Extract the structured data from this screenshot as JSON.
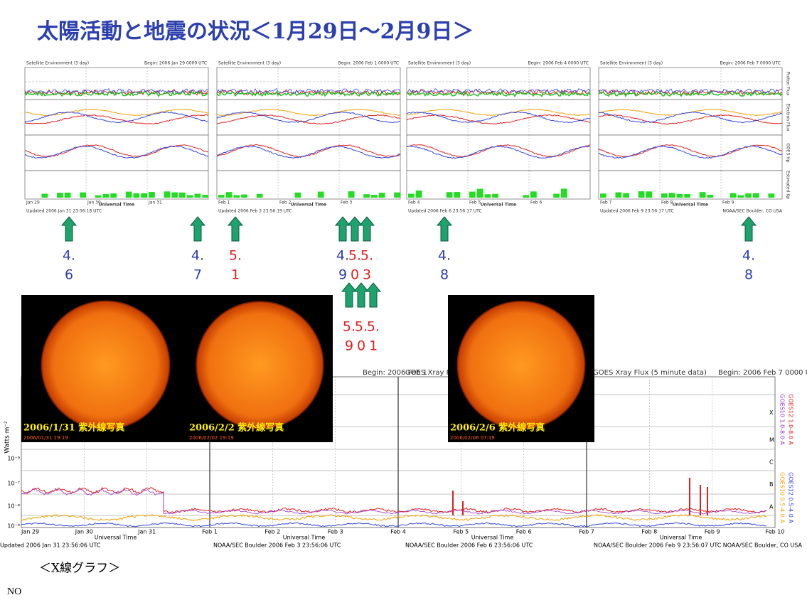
{
  "title": "太陽活動と地震の状況＜1月29日～2月9日＞",
  "satellite_panels": [
    {
      "heading": "Satellite Environment (3 day)",
      "begin": "Begin: 2006 Jan 29 0000 UTC",
      "dates": [
        "Jan 29",
        "Jan 30",
        "Jan 31"
      ],
      "footer": "Updated 2006 Jan 31 23:56:18 UTC",
      "credit": "NOAA/SEC Boulder, CO USA"
    },
    {
      "heading": "Satellite Environment (3 day)",
      "begin": "Begin: 2006 Feb 1 0000 UTC",
      "dates": [
        "Feb 1",
        "Feb 2",
        "Feb 3"
      ],
      "footer": "Updated 2006 Feb 3 23:56:19 UTC",
      "credit": "NOAA/SEC Boulder, CO USA"
    },
    {
      "heading": "Satellite Environment (3 day)",
      "begin": "Begin: 2006 Feb 4 0000 UTC",
      "dates": [
        "Feb 4",
        "Feb 5",
        "Feb 6"
      ],
      "footer": "Updated 2006 Feb 6 23:56:17 UTC",
      "credit": "NOAA/SEC Boulder, CO USA"
    },
    {
      "heading": "Satellite Environment (3 day)",
      "begin": "Begin: 2006 Feb 7 0000 UTC",
      "dates": [
        "Feb 7",
        "Feb 8",
        "Feb 9"
      ],
      "footer": "Updated 2006 Feb 9 23:56:17 UTC",
      "credit": "NOAA/SEC Boulder, CO USA"
    }
  ],
  "time_axis": "Universal Time",
  "side_labels": [
    "Proton Flux",
    "Electron Flux",
    "GOES Hp",
    "Estimated Kp"
  ],
  "earthquakes_row1": [
    {
      "lines": [
        "4.",
        "6"
      ],
      "color": "#2b3fae"
    },
    {
      "lines": [
        "4.",
        "7"
      ],
      "color": "#2b3fae"
    },
    {
      "lines": [
        "5.",
        "1"
      ],
      "color": "#e02020"
    },
    {
      "lines": [
        "4.",
        "9"
      ],
      "color": "#2b3fae"
    },
    {
      "lines": [
        "5.",
        "0"
      ],
      "color": "#e02020"
    },
    {
      "lines": [
        "5.",
        "3"
      ],
      "color": "#e02020"
    },
    {
      "lines": [
        "4.",
        "8"
      ],
      "color": "#2b3fae"
    },
    {
      "lines": [
        "4.",
        "8"
      ],
      "color": "#2b3fae"
    }
  ],
  "earthquakes_row2": [
    {
      "lines": [
        "5.",
        "9"
      ],
      "color": "#e02020"
    },
    {
      "lines": [
        "5.",
        "0"
      ],
      "color": "#e02020"
    },
    {
      "lines": [
        "5.",
        "1"
      ],
      "color": "#e02020"
    }
  ],
  "photos": [
    {
      "caption": "2006/1/31  紫外線写真",
      "timestamp": "2006/01/31 19:19"
    },
    {
      "caption": "2006/2/2  紫外線写真",
      "timestamp": "2006/02/02 19:19"
    },
    {
      "caption": "2006/2/6  紫外線写真",
      "timestamp": "2006/02/06 07:19"
    }
  ],
  "xray": {
    "title": "GOES Xray Flux (5 minute data)",
    "begins": [
      "Begin: 2006 Feb 1",
      "Begin: 2006 Feb 7 0000 UTC"
    ],
    "y_label": "Watts m⁻²",
    "y_ticks": [
      "10⁻⁶",
      "10⁻⁷",
      "10⁻⁸",
      "10⁻⁹"
    ],
    "classes": [
      "X",
      "M",
      "C",
      "B",
      "A"
    ],
    "dates": [
      "Jan 29",
      "Jan 30",
      "Jan 31",
      "Feb 1",
      "Feb 2",
      "Feb 3",
      "Feb 4",
      "Feb 5",
      "Feb 6",
      "Feb 7",
      "Feb 8",
      "Feb 9",
      "Feb 10"
    ],
    "footers": [
      "Updated 2006 Jan 31 23:56:06 UTC",
      "NOAA/SEC Boulder 2006 Feb 3 23:56:06 UTC",
      "NOAA/SEC Boulder 2006 Feb 6 23:56:06 UTC",
      "NOAA/SEC Boulder 2006 Feb 9 23:56:07 UTC",
      "NOAA/SEC Boulder, CO USA"
    ],
    "legend": [
      {
        "name": "GOES10 1.0-8.0 A",
        "color": "#9933cc"
      },
      {
        "name": "GOES12 1.0-8.0 A",
        "color": "#e02020"
      },
      {
        "name": "GOES10 0.5-4.0 A",
        "color": "#f0a000"
      },
      {
        "name": "GOES12 0.5-4.0 A",
        "color": "#3344dd"
      }
    ]
  },
  "caption": "＜X線グラフ＞",
  "note": "NO"
}
